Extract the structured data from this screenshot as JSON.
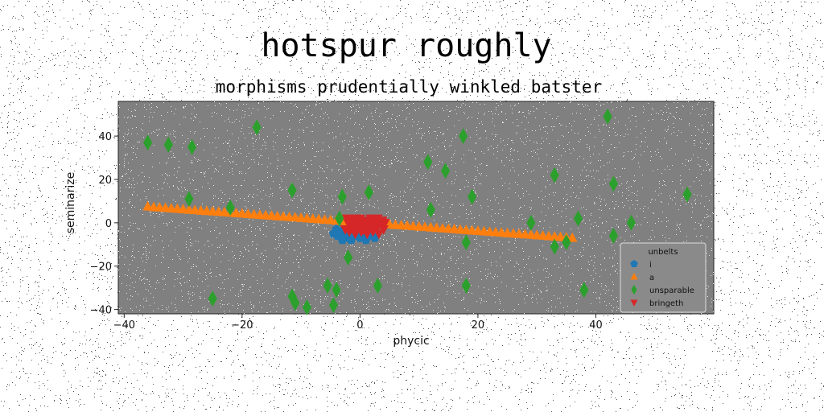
{
  "chart_data": {
    "type": "scatter",
    "title": "hotspur roughly",
    "subtitle": "morphisms prudentially winkled batster",
    "xlabel": "phycic",
    "ylabel": "seminarize",
    "xlim": [
      -41,
      60
    ],
    "ylim": [
      -42,
      56
    ],
    "xticks": [
      -40,
      -20,
      0,
      20,
      40
    ],
    "yticks": [
      -40,
      -20,
      0,
      20,
      40
    ],
    "xtick_labels": [
      "−40",
      "−20",
      "0",
      "20",
      "40"
    ],
    "ytick_labels": [
      "−40",
      "−20",
      "0",
      "20",
      "40"
    ],
    "grid": false,
    "background": "#808080",
    "legend": {
      "title": "unbelts",
      "placement": "lower-right"
    },
    "series": [
      {
        "name": "i",
        "marker": "pentagon",
        "color": "#1f77b4",
        "points": [
          [
            -4.5,
            -5
          ],
          [
            -3.8,
            -6
          ],
          [
            -3.2,
            -4
          ],
          [
            -2.5,
            -7
          ],
          [
            -2,
            -5
          ],
          [
            -1.5,
            -8
          ],
          [
            -1,
            -6
          ],
          [
            -0.5,
            -4
          ],
          [
            0,
            -7
          ],
          [
            0.5,
            -5
          ],
          [
            1,
            -8
          ],
          [
            1.5,
            -6
          ],
          [
            2,
            -4
          ],
          [
            -4,
            -3
          ],
          [
            -3,
            -8
          ],
          [
            -1.2,
            -3
          ],
          [
            0.8,
            -3
          ],
          [
            2.5,
            -7
          ]
        ]
      },
      {
        "name": "a",
        "marker": "triangle-up",
        "color": "#ff7f0e",
        "points": [
          [
            -36,
            7.5
          ],
          [
            -35,
            7.2
          ],
          [
            -34,
            7.0
          ],
          [
            -33,
            6.8
          ],
          [
            -32,
            6.6
          ],
          [
            -31,
            6.4
          ],
          [
            -30,
            6.2
          ],
          [
            -29,
            6.0
          ],
          [
            -28,
            5.8
          ],
          [
            -27,
            5.6
          ],
          [
            -26,
            5.4
          ],
          [
            -25,
            5.2
          ],
          [
            -24,
            5.0
          ],
          [
            -23,
            4.8
          ],
          [
            -22,
            4.6
          ],
          [
            -21,
            4.4
          ],
          [
            -20,
            4.2
          ],
          [
            -19,
            4.0
          ],
          [
            -18,
            3.8
          ],
          [
            -17,
            3.6
          ],
          [
            -16,
            3.4
          ],
          [
            -15,
            3.2
          ],
          [
            -14,
            3.0
          ],
          [
            -13,
            2.8
          ],
          [
            -12,
            2.6
          ],
          [
            -11,
            2.4
          ],
          [
            -10,
            2.2
          ],
          [
            -9,
            2.0
          ],
          [
            -8,
            1.8
          ],
          [
            -7,
            1.6
          ],
          [
            -6,
            1.4
          ],
          [
            -5,
            1.2
          ],
          [
            -4,
            1.0
          ],
          [
            -3,
            0.8
          ],
          [
            -2,
            0.6
          ],
          [
            -1,
            0.4
          ],
          [
            0,
            0.2
          ],
          [
            1,
            0.0
          ],
          [
            2,
            -0.2
          ],
          [
            3,
            -0.4
          ],
          [
            4,
            -0.6
          ],
          [
            5,
            -0.8
          ],
          [
            6,
            -1.0
          ],
          [
            7,
            -1.2
          ],
          [
            8,
            -1.4
          ],
          [
            9,
            -1.6
          ],
          [
            10,
            -1.8
          ],
          [
            11,
            -2.0
          ],
          [
            12,
            -2.2
          ],
          [
            13,
            -2.4
          ],
          [
            14,
            -2.6
          ],
          [
            15,
            -2.8
          ],
          [
            16,
            -3.0
          ],
          [
            17,
            -3.2
          ],
          [
            18,
            -3.4
          ],
          [
            19,
            -3.6
          ],
          [
            20,
            -3.8
          ],
          [
            21,
            -4.0
          ],
          [
            22,
            -4.2
          ],
          [
            23,
            -4.4
          ],
          [
            24,
            -4.6
          ],
          [
            25,
            -4.8
          ],
          [
            26,
            -5.0
          ],
          [
            27,
            -5.2
          ],
          [
            28,
            -5.4
          ],
          [
            29,
            -5.6
          ],
          [
            30,
            -5.8
          ],
          [
            31,
            -6.0
          ],
          [
            32,
            -6.2
          ],
          [
            33,
            -6.4
          ],
          [
            34,
            -6.6
          ],
          [
            35,
            -6.8
          ],
          [
            36,
            -7.0
          ]
        ]
      },
      {
        "name": "unsparable",
        "marker": "thin-diamond",
        "color": "#2ca02c",
        "points": [
          [
            -36,
            37
          ],
          [
            -32.5,
            36
          ],
          [
            -28.5,
            35
          ],
          [
            -17.5,
            44
          ],
          [
            -29,
            11
          ],
          [
            -22,
            7
          ],
          [
            -11.5,
            15
          ],
          [
            -3,
            12
          ],
          [
            1.5,
            14
          ],
          [
            -3.5,
            2
          ],
          [
            -2,
            -16
          ],
          [
            -25,
            -35
          ],
          [
            -11.5,
            -34
          ],
          [
            -11,
            -37
          ],
          [
            -9,
            -39
          ],
          [
            -5.5,
            -29
          ],
          [
            -4,
            -31
          ],
          [
            -4.5,
            -38
          ],
          [
            3,
            -29
          ],
          [
            11.5,
            28
          ],
          [
            14.5,
            24
          ],
          [
            12,
            6
          ],
          [
            17.5,
            40
          ],
          [
            19,
            12
          ],
          [
            18,
            -9
          ],
          [
            18,
            -29
          ],
          [
            29,
            0
          ],
          [
            33,
            22
          ],
          [
            33,
            -11
          ],
          [
            35,
            -9
          ],
          [
            37,
            2
          ],
          [
            38,
            -31
          ],
          [
            42,
            49
          ],
          [
            43,
            18
          ],
          [
            43,
            -6
          ],
          [
            45,
            -23
          ],
          [
            46,
            0
          ],
          [
            52,
            -37
          ],
          [
            55.5,
            13
          ]
        ]
      },
      {
        "name": "bringeth",
        "marker": "triangle-down",
        "color": "#d62728",
        "points": [
          [
            -2,
            1
          ],
          [
            -1.5,
            -1
          ],
          [
            -1,
            2
          ],
          [
            -0.5,
            -2
          ],
          [
            0,
            0
          ],
          [
            0.5,
            -3
          ],
          [
            1,
            1
          ],
          [
            1.5,
            -1
          ],
          [
            2,
            -3
          ],
          [
            2.5,
            1
          ],
          [
            3,
            -2
          ],
          [
            3.5,
            0
          ],
          [
            4,
            -1
          ],
          [
            -2.5,
            -3
          ],
          [
            -1.8,
            -4
          ],
          [
            -0.8,
            -5
          ],
          [
            0.2,
            -4
          ],
          [
            1.2,
            -5
          ],
          [
            2.2,
            -4
          ],
          [
            3.2,
            -5
          ],
          [
            -2,
            0
          ],
          [
            -1,
            -1
          ],
          [
            0,
            2
          ],
          [
            1,
            -2
          ],
          [
            2,
            0
          ],
          [
            3,
            2
          ],
          [
            4,
            -3
          ],
          [
            -2.2,
            2
          ],
          [
            -0.3,
            1
          ],
          [
            0.8,
            0
          ],
          [
            1.8,
            2
          ],
          [
            2.8,
            -1
          ],
          [
            3.8,
            1
          ],
          [
            -1.2,
            -3
          ],
          [
            0.6,
            -3
          ],
          [
            2.4,
            -2
          ],
          [
            4.2,
            0
          ]
        ]
      }
    ]
  }
}
